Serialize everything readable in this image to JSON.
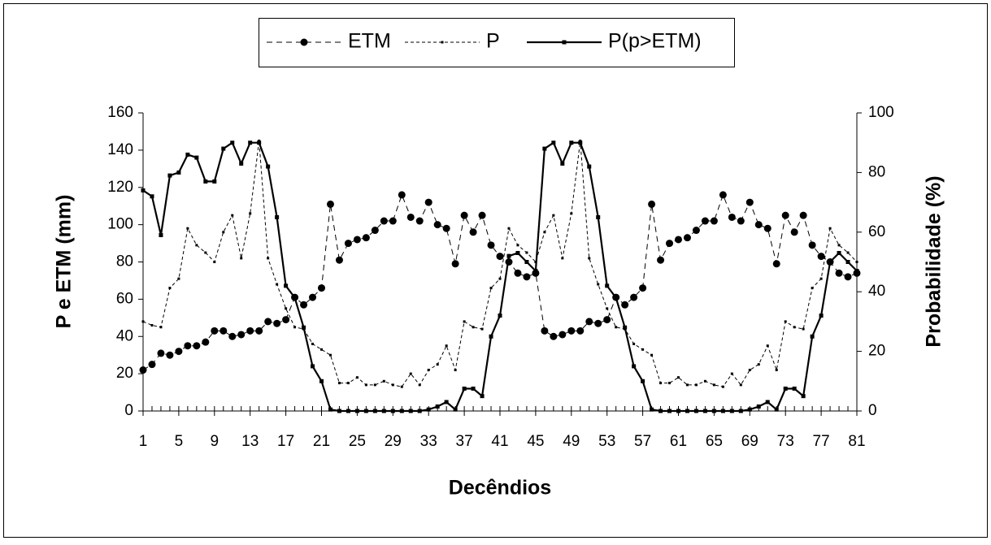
{
  "chart_data": {
    "type": "line",
    "x_label": "Decêndios",
    "y_label": "P e ETM (mm)",
    "y2_label": "Probabilidade (%)",
    "x": [
      1,
      2,
      3,
      4,
      5,
      6,
      7,
      8,
      9,
      10,
      11,
      12,
      13,
      14,
      15,
      16,
      17,
      18,
      19,
      20,
      21,
      22,
      23,
      24,
      25,
      26,
      27,
      28,
      29,
      30,
      31,
      32,
      33,
      34,
      35,
      36,
      37,
      38,
      39,
      40,
      41,
      42,
      43,
      44,
      45,
      46,
      47,
      48,
      49,
      50,
      51,
      52,
      53,
      54,
      55,
      56,
      57,
      58,
      59,
      60,
      61,
      62,
      63,
      64,
      65,
      66,
      67,
      68,
      69,
      70,
      71,
      72,
      73,
      74,
      75,
      76,
      77,
      78,
      79,
      80,
      81
    ],
    "xlim": [
      1,
      81
    ],
    "xticks": [
      1,
      5,
      9,
      13,
      17,
      21,
      25,
      29,
      33,
      37,
      41,
      45,
      49,
      53,
      57,
      61,
      65,
      69,
      73,
      77,
      81
    ],
    "ylim": [
      0,
      160
    ],
    "yticks": [
      0,
      20,
      40,
      60,
      80,
      100,
      120,
      140,
      160
    ],
    "y2lim": [
      0,
      100
    ],
    "y2ticks": [
      0,
      20,
      40,
      60,
      80,
      100
    ],
    "legend": "top",
    "grid": false,
    "series": [
      {
        "name": "ETM",
        "color": "#000000",
        "style": "dashed",
        "marker": "circle",
        "axis": "y",
        "values": [
          22,
          25,
          31,
          30,
          32,
          35,
          35,
          37,
          43,
          43,
          40,
          41,
          43,
          43,
          48,
          47,
          49,
          61,
          57,
          61,
          66,
          111,
          81,
          90,
          92,
          93,
          97,
          102,
          102,
          116,
          104,
          102,
          112,
          100,
          98,
          79,
          105,
          96,
          105,
          89,
          83,
          80,
          74,
          72,
          74,
          43,
          40,
          41,
          43,
          43,
          48,
          47,
          49,
          61,
          57,
          61,
          66,
          111,
          81,
          90,
          92,
          93,
          97,
          102,
          102,
          116,
          104,
          102,
          112,
          100,
          98,
          79,
          105,
          96,
          105,
          89,
          83,
          80,
          74,
          72,
          74
        ]
      },
      {
        "name": "P",
        "color": "#000000",
        "style": "dotted",
        "marker": "small-square",
        "axis": "y",
        "values": [
          48,
          46,
          45,
          66,
          71,
          98,
          89,
          85,
          80,
          96,
          105,
          82,
          106,
          145,
          82,
          68,
          55,
          45,
          44,
          36,
          33,
          30,
          15,
          15,
          18,
          14,
          14,
          16,
          14,
          13,
          20,
          14,
          22,
          25,
          35,
          22,
          48,
          45,
          44,
          66,
          71,
          98,
          89,
          85,
          80,
          96,
          105,
          82,
          106,
          145,
          82,
          68,
          55,
          45,
          44,
          36,
          33,
          30,
          15,
          15,
          18,
          14,
          14,
          16,
          14,
          13,
          20,
          14,
          22,
          25,
          35,
          22,
          48,
          45,
          44,
          66,
          71,
          98,
          89,
          85,
          80
        ]
      },
      {
        "name": "P(p>ETM)",
        "color": "#000000",
        "style": "solid",
        "marker": "square",
        "axis": "y2",
        "values": [
          74,
          72,
          59,
          79,
          80,
          86,
          85,
          77,
          77,
          88,
          90,
          83,
          90,
          90,
          82,
          65,
          42,
          38,
          28,
          15,
          10,
          0.5,
          0,
          0,
          0,
          0,
          0,
          0,
          0,
          0,
          0,
          0,
          0.5,
          1.5,
          3,
          0.5,
          7.5,
          7.5,
          5,
          25,
          32,
          52,
          53,
          50,
          47,
          88,
          90,
          83,
          90,
          90,
          82,
          65,
          42,
          38,
          28,
          15,
          10,
          0.5,
          0,
          0,
          0,
          0,
          0,
          0,
          0,
          0,
          0,
          0,
          0.5,
          1.5,
          3,
          0.5,
          7.5,
          7.5,
          5,
          25,
          32,
          50,
          53,
          50,
          47
        ]
      }
    ]
  }
}
